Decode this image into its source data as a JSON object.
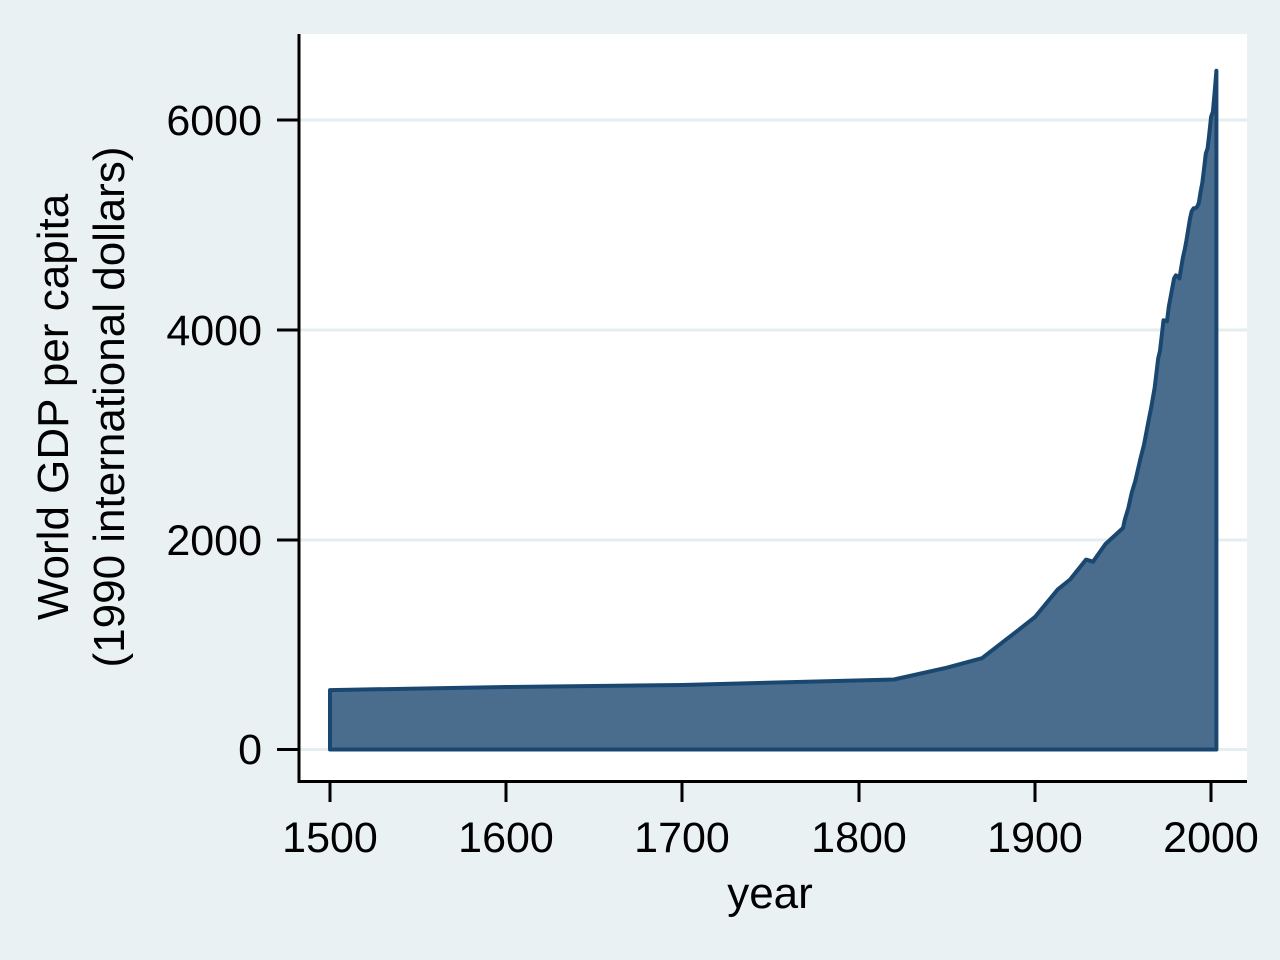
{
  "figure": {
    "background_color": "#eaf1f3",
    "plot_background_color": "#ffffff",
    "grid_color": "#e4eef0",
    "axis_color": "#000000",
    "area_fill_color": "#4a6d8e",
    "area_line_color": "#1a476f"
  },
  "chart_data": {
    "type": "area",
    "title": "",
    "xlabel": "year",
    "ylabel": "World GDP per capita (1990 international dollars)",
    "ylabel_lines": [
      "World GDP per capita",
      "(1990 international dollars)"
    ],
    "x_tick_labels": [
      "1500",
      "1600",
      "1700",
      "1800",
      "1900",
      "2000"
    ],
    "x_tick_values": [
      1500,
      1600,
      1700,
      1800,
      1900,
      2000
    ],
    "y_tick_labels": [
      "0",
      "2000",
      "4000",
      "6000"
    ],
    "y_tick_values": [
      0,
      2000,
      4000,
      6000
    ],
    "xlim": [
      1482,
      2020
    ],
    "ylim": [
      0,
      6800
    ],
    "grid": "horizontal",
    "legend_position": "none",
    "series": [
      {
        "name": "World GDP per capita (1990 international dollars)",
        "points": [
          [
            1500,
            566
          ],
          [
            1600,
            596
          ],
          [
            1700,
            615
          ],
          [
            1820,
            667
          ],
          [
            1850,
            780
          ],
          [
            1870,
            870
          ],
          [
            1880,
            1000
          ],
          [
            1890,
            1130
          ],
          [
            1900,
            1262
          ],
          [
            1913,
            1526
          ],
          [
            1920,
            1620
          ],
          [
            1929,
            1810
          ],
          [
            1933,
            1790
          ],
          [
            1940,
            1958
          ],
          [
            1950,
            2111
          ],
          [
            1951,
            2190
          ],
          [
            1953,
            2300
          ],
          [
            1955,
            2450
          ],
          [
            1957,
            2560
          ],
          [
            1960,
            2777
          ],
          [
            1962,
            2910
          ],
          [
            1964,
            3090
          ],
          [
            1966,
            3260
          ],
          [
            1968,
            3450
          ],
          [
            1970,
            3729
          ],
          [
            1971,
            3800
          ],
          [
            1973,
            4091
          ],
          [
            1974,
            4088
          ],
          [
            1975,
            4081
          ],
          [
            1976,
            4220
          ],
          [
            1978,
            4400
          ],
          [
            1979,
            4490
          ],
          [
            1980,
            4520
          ],
          [
            1981,
            4510
          ],
          [
            1982,
            4490
          ],
          [
            1984,
            4690
          ],
          [
            1985,
            4764
          ],
          [
            1986,
            4850
          ],
          [
            1988,
            5060
          ],
          [
            1989,
            5130
          ],
          [
            1990,
            5157
          ],
          [
            1991,
            5160
          ],
          [
            1992,
            5170
          ],
          [
            1993,
            5210
          ],
          [
            1994,
            5310
          ],
          [
            1995,
            5400
          ],
          [
            1996,
            5540
          ],
          [
            1997,
            5680
          ],
          [
            1998,
            5730
          ],
          [
            1999,
            5870
          ],
          [
            2000,
            6030
          ],
          [
            2001,
            6080
          ],
          [
            2002,
            6260
          ],
          [
            2003,
            6470
          ]
        ]
      }
    ]
  }
}
